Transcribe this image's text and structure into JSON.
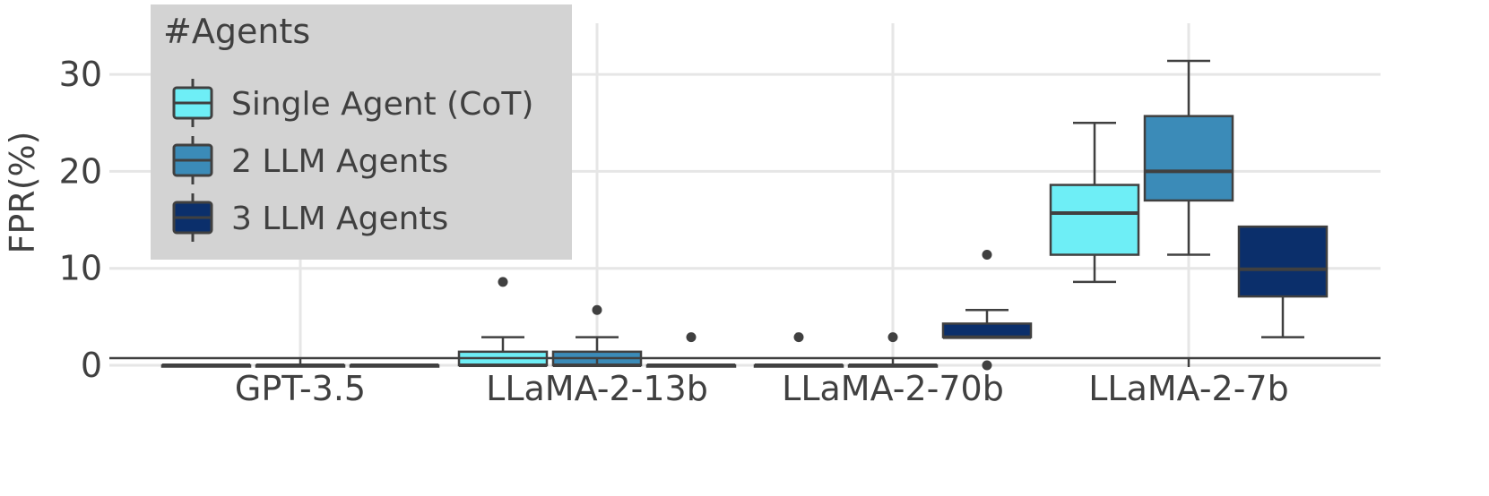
{
  "chart_data": {
    "type": "box",
    "xlabel": "",
    "ylabel": "FPR(%)",
    "ylim": [
      -1.5,
      34.5
    ],
    "yticks": [
      0,
      10,
      20,
      30
    ],
    "categories": [
      "GPT-3.5",
      "LLaMA-2-13b",
      "LLaMA-2-70b",
      "LLaMA-2-7b"
    ],
    "grid": true,
    "legend": {
      "title": "#Agents",
      "position": "top-left"
    },
    "series": [
      {
        "name": "Single Agent (CoT)",
        "color": "#6EEEF6",
        "boxes": [
          {
            "min": 0,
            "q1": 0,
            "median": 0,
            "q3": 0,
            "max": 0,
            "outliers": []
          },
          {
            "min": 0,
            "q1": 0,
            "median": 0,
            "q3": 1.4,
            "max": 2.9,
            "outliers": [
              8.6
            ]
          },
          {
            "min": 0,
            "q1": 0,
            "median": 0,
            "q3": 0,
            "max": 0,
            "outliers": [
              2.9
            ]
          },
          {
            "min": 8.6,
            "q1": 11.4,
            "median": 15.7,
            "q3": 18.6,
            "max": 25.0,
            "outliers": []
          }
        ]
      },
      {
        "name": "2 LLM Agents",
        "color": "#3B8BB8",
        "boxes": [
          {
            "min": 0,
            "q1": 0,
            "median": 0,
            "q3": 0,
            "max": 0,
            "outliers": []
          },
          {
            "min": 0,
            "q1": 0,
            "median": 0,
            "q3": 1.4,
            "max": 2.9,
            "outliers": [
              5.7
            ]
          },
          {
            "min": 0,
            "q1": 0,
            "median": 0,
            "q3": 0,
            "max": 0,
            "outliers": [
              2.9
            ]
          },
          {
            "min": 11.4,
            "q1": 17.0,
            "median": 20.0,
            "q3": 25.7,
            "max": 31.4,
            "outliers": []
          }
        ]
      },
      {
        "name": "3 LLM Agents",
        "color": "#0B2F6B",
        "boxes": [
          {
            "min": 0,
            "q1": 0,
            "median": 0,
            "q3": 0,
            "max": 0,
            "outliers": []
          },
          {
            "min": 0,
            "q1": 0,
            "median": 0,
            "q3": 0,
            "max": 0,
            "outliers": [
              2.9
            ]
          },
          {
            "min": 2.9,
            "q1": 2.9,
            "median": 2.9,
            "q3": 4.3,
            "max": 5.7,
            "outliers": [
              0,
              11.4
            ]
          },
          {
            "min": 2.9,
            "q1": 7.1,
            "median": 9.9,
            "q3": 14.3,
            "max": 14.3,
            "outliers": []
          }
        ]
      }
    ]
  }
}
